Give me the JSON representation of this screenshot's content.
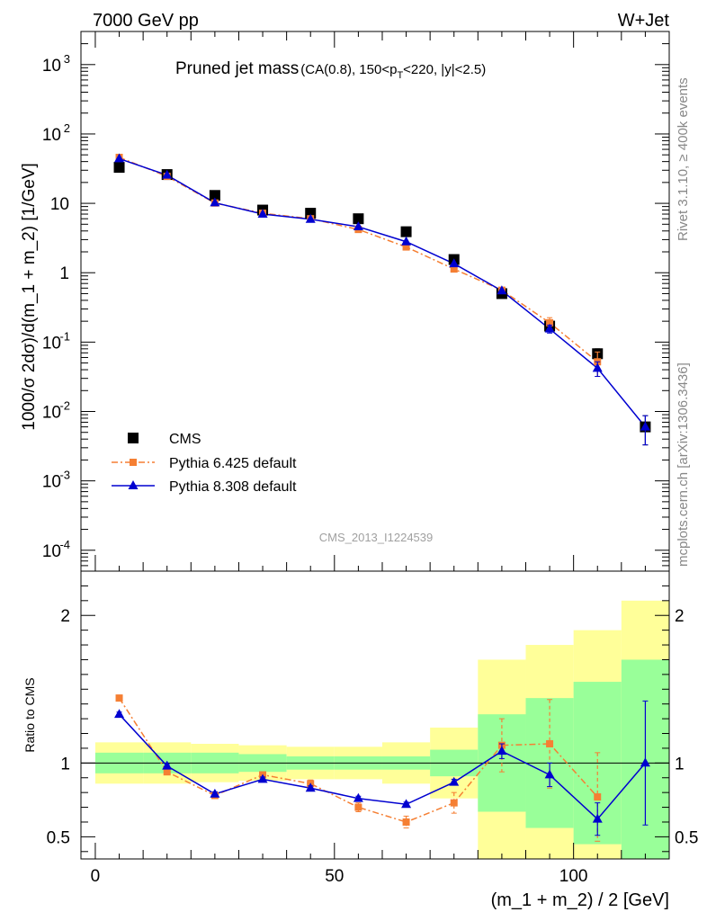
{
  "header": {
    "left": "7000 GeV pp",
    "right": "W+Jet"
  },
  "side_labels": {
    "rivet": "Rivet 3.1.10, ≥ 400k events",
    "site": "mcplots.cern.ch [arXiv:1306.3436]"
  },
  "watermark": "CMS_2013_I1224539",
  "colors": {
    "cms": "#000000",
    "py6": "#f57f33",
    "py8": "#0000d0",
    "band_inner": "#99ff99",
    "band_outer": "#ffff99"
  },
  "chart_data": [
    {
      "type": "scatter",
      "title": "Pruned jet mass",
      "title_detail": "(CA(0.8), 150<p_T<220, |y|<2.5)",
      "ylabel": "1000/σ 2dσ)/d(m_1 + m_2) [1/GeV]",
      "yscale": "log",
      "ylim": [
        5e-05,
        3000
      ],
      "xlim": [
        -3,
        120
      ],
      "legend_position": "bottom-left",
      "x": [
        5,
        15,
        25,
        35,
        45,
        55,
        65,
        75,
        85,
        95,
        105,
        115
      ],
      "series": [
        {
          "name": "CMS",
          "values": [
            33,
            26,
            13,
            8,
            7.2,
            6,
            3.9,
            1.55,
            0.5,
            0.17,
            0.068,
            0.006
          ],
          "yerr": [
            null,
            null,
            null,
            null,
            null,
            null,
            null,
            null,
            null,
            null,
            0.012,
            0.0027
          ]
        },
        {
          "name": "Pythia 6.425 default",
          "values": [
            46,
            24.5,
            10.1,
            7.2,
            6,
            4.2,
            2.35,
            1.13,
            0.56,
            0.19,
            0.052,
            null
          ],
          "yerr": [
            null,
            null,
            null,
            null,
            null,
            null,
            null,
            null,
            null,
            0.035,
            0.02,
            null
          ]
        },
        {
          "name": "Pythia 8.308 default",
          "values": [
            44,
            25.5,
            10.2,
            7,
            5.9,
            4.6,
            2.8,
            1.35,
            0.55,
            0.155,
            0.042,
            0.006
          ],
          "yerr": [
            null,
            null,
            null,
            null,
            null,
            null,
            null,
            null,
            null,
            0.02,
            0.01,
            0.0027
          ]
        }
      ],
      "yticks": [
        {
          "v": 0.0001,
          "base": "10",
          "exp": "-4"
        },
        {
          "v": 0.001,
          "base": "10",
          "exp": "-3"
        },
        {
          "v": 0.01,
          "base": "10",
          "exp": "-2"
        },
        {
          "v": 0.1,
          "base": "10",
          "exp": "-1"
        },
        {
          "v": 1,
          "base": "1",
          "exp": ""
        },
        {
          "v": 10,
          "base": "10",
          "exp": ""
        },
        {
          "v": 100,
          "base": "10",
          "exp": "2"
        },
        {
          "v": 1000,
          "base": "10",
          "exp": "3"
        }
      ]
    },
    {
      "type": "line",
      "ylabel": "Ratio to CMS",
      "xlabel": "(m_1 + m_2) / 2 [GeV]",
      "ylim": [
        0.35,
        2.3
      ],
      "xlim": [
        -3,
        120
      ],
      "x": [
        5,
        15,
        25,
        35,
        45,
        55,
        65,
        75,
        85,
        95,
        105,
        115
      ],
      "xticks": [
        0,
        50,
        100
      ],
      "yticks": [
        0.5,
        1,
        2
      ],
      "bands": {
        "edges": [
          0,
          10,
          20,
          30,
          40,
          50,
          60,
          70,
          80,
          90,
          100,
          110,
          120
        ],
        "inner_lo": [
          0.93,
          0.93,
          0.93,
          0.94,
          0.955,
          0.955,
          0.955,
          0.91,
          0.67,
          0.56,
          0.45,
          0.3
        ],
        "inner_hi": [
          1.07,
          1.07,
          1.07,
          1.06,
          1.045,
          1.045,
          1.045,
          1.09,
          1.33,
          1.44,
          1.55,
          1.7
        ],
        "outer_lo": [
          0.86,
          0.86,
          0.87,
          0.88,
          0.89,
          0.89,
          0.86,
          0.76,
          0.3,
          0.3,
          0.3,
          0.3
        ],
        "outer_hi": [
          1.14,
          1.14,
          1.13,
          1.12,
          1.11,
          1.11,
          1.14,
          1.24,
          1.7,
          1.8,
          1.9,
          2.1
        ]
      },
      "series": [
        {
          "name": "Pythia 6.425 default",
          "values": [
            1.44,
            0.94,
            0.78,
            0.92,
            0.86,
            0.7,
            0.6,
            0.73,
            1.12,
            1.13,
            0.77,
            null
          ],
          "yerr": [
            0.02,
            0.02,
            0.02,
            0.02,
            0.025,
            0.03,
            0.04,
            0.07,
            0.18,
            0.3,
            0.3,
            null
          ]
        },
        {
          "name": "Pythia 8.308 default",
          "values": [
            1.33,
            0.98,
            0.79,
            0.89,
            0.83,
            0.76,
            0.72,
            0.87,
            1.08,
            0.92,
            0.62,
            1.0
          ],
          "yerr": [
            0.015,
            0.015,
            0.015,
            0.015,
            0.015,
            0.015,
            0.015,
            0.02,
            0.05,
            0.08,
            0.11,
            0.42
          ]
        }
      ]
    }
  ]
}
